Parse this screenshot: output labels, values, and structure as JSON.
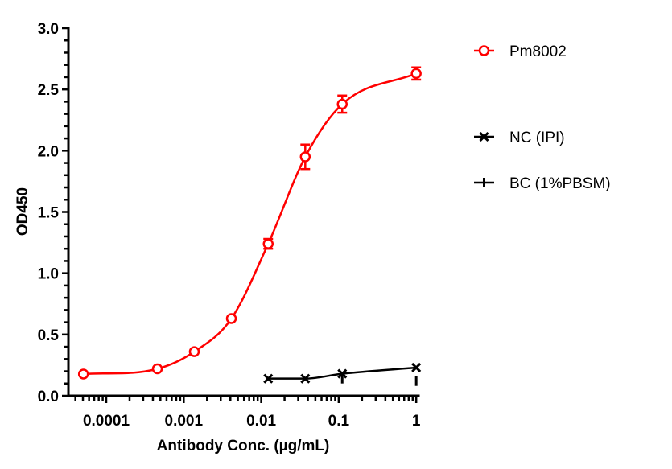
{
  "chart_data": {
    "type": "scatter",
    "title": "",
    "xlabel": "Antibody Conc. (µg/mL)",
    "ylabel": "OD450",
    "xscale": "log",
    "xlim": [
      3.25e-05,
      1.07
    ],
    "ylim": [
      0,
      3.0
    ],
    "x_ticks": [
      0.0001,
      0.001,
      0.01,
      0.1,
      1
    ],
    "x_tick_labels": [
      "0.0001",
      "0.001",
      "0.01",
      "0.1",
      "1"
    ],
    "y_ticks": [
      0,
      0.5,
      1.0,
      1.5,
      2.0,
      2.5,
      3.0
    ],
    "y_tick_labels": [
      "0.0",
      "0.5",
      "1.0",
      "1.5",
      "2.0",
      "2.5",
      "3.0"
    ],
    "grid": false,
    "legend_position": "right",
    "series": [
      {
        "name": "Pm8002",
        "color": "#ff0000",
        "marker": "open-circle",
        "fit_line": true,
        "x": [
          5.08e-05,
          0.000457,
          0.00137,
          0.00412,
          0.0123,
          0.037,
          0.111,
          1
        ],
        "y": [
          0.177,
          0.22,
          0.36,
          0.63,
          1.24,
          1.95,
          2.38,
          2.63
        ],
        "error": [
          0.01,
          0.01,
          0.01,
          0.02,
          0.04,
          0.1,
          0.07,
          0.05
        ]
      },
      {
        "name": "NC (IPI)",
        "color": "#000000",
        "marker": "x",
        "fit_line": true,
        "x": [
          0.0123,
          0.037,
          0.111,
          1
        ],
        "y": [
          0.14,
          0.14,
          0.18,
          0.23
        ]
      },
      {
        "name": "BC (1%PBSM)",
        "color": "#000000",
        "marker": "vertical-bar",
        "fit_line": false,
        "x": [
          0.111,
          1
        ],
        "y": [
          0.14,
          0.12
        ]
      }
    ]
  }
}
